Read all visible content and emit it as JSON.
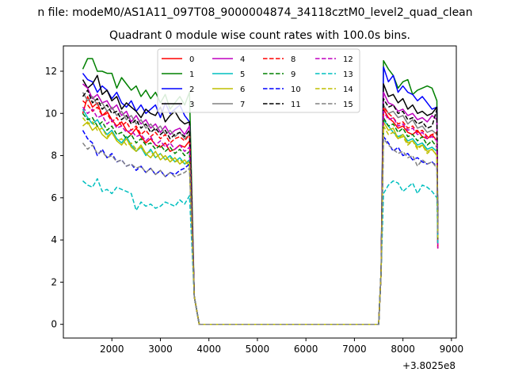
{
  "chart_data": {
    "type": "line",
    "suptitle": "n file: modeM0/AS1A11_097T08_9000004874_34118cztM0_level2_quad_clean",
    "title": "Quadrant 0 module wise count rates with 100.0s bins.",
    "xlabel": "",
    "ylabel": "",
    "x_offset_label": "+3.8025e8",
    "xlim": [
      1000,
      9100
    ],
    "ylim": [
      -0.65,
      13.2
    ],
    "x_ticks": [
      2000,
      3000,
      4000,
      5000,
      6000,
      7000,
      8000,
      9000
    ],
    "x_tick_labels": [
      "2000",
      "3000",
      "4000",
      "5000",
      "6000",
      "7000",
      "8000",
      "9000"
    ],
    "y_ticks": [
      0,
      2,
      4,
      6,
      8,
      10,
      12
    ],
    "y_tick_labels": [
      "0",
      "2",
      "4",
      "6",
      "8",
      "10",
      "12"
    ],
    "legend_position": "top-center",
    "legend_columns": 4,
    "series": [
      {
        "name": "0",
        "color": "#ff0000",
        "dash": "solid",
        "seg1": [
          10.0,
          10.8,
          10.3,
          10.5,
          9.9,
          10.1,
          9.7,
          9.4,
          9.6,
          9.2,
          9.0,
          9.3,
          8.9,
          8.6,
          8.8,
          8.5,
          8.4,
          8.6,
          8.2,
          8.3,
          8.5,
          8.4,
          8.7
        ],
        "seg2": [
          10.2,
          9.8,
          9.6,
          9.3,
          9.4,
          9.1,
          9.0,
          9.2,
          8.9,
          8.8,
          9.0,
          8.7
        ]
      },
      {
        "name": "1",
        "color": "#008000",
        "dash": "solid",
        "seg1": [
          12.1,
          12.6,
          12.6,
          12.0,
          12.0,
          11.9,
          11.9,
          11.2,
          11.7,
          11.4,
          11.1,
          11.3,
          10.8,
          11.1,
          10.7,
          11.0,
          10.5,
          10.9,
          10.2,
          10.5,
          10.8,
          10.4,
          11.0
        ],
        "seg2": [
          12.5,
          12.1,
          11.8,
          11.2,
          11.5,
          11.6,
          10.9,
          11.1,
          11.2,
          11.3,
          11.2,
          10.6
        ]
      },
      {
        "name": "2",
        "color": "#0000ff",
        "dash": "solid",
        "seg1": [
          11.9,
          11.6,
          11.5,
          11.0,
          11.3,
          11.1,
          10.7,
          11.0,
          10.5,
          10.3,
          10.6,
          10.1,
          10.4,
          10.0,
          10.2,
          10.4,
          9.8,
          10.5,
          10.0,
          10.2,
          10.4,
          9.9,
          9.6
        ],
        "seg2": [
          12.2,
          11.5,
          11.8,
          11.0,
          11.3,
          11.0,
          10.9,
          10.6,
          10.8,
          10.5,
          10.2,
          10.3
        ]
      },
      {
        "name": "3",
        "color": "#000000",
        "dash": "solid",
        "seg1": [
          11.6,
          11.2,
          11.4,
          11.8,
          10.9,
          11.1,
          10.6,
          10.8,
          10.2,
          10.5,
          10.3,
          10.1,
          9.8,
          10.2,
          10.0,
          9.9,
          10.3,
          9.6,
          9.9,
          10.1,
          9.7,
          9.5,
          9.6
        ],
        "seg2": [
          11.4,
          10.8,
          10.9,
          10.5,
          10.7,
          10.2,
          10.4,
          10.0,
          10.1,
          9.9,
          10.0,
          10.3
        ]
      },
      {
        "name": "4",
        "color": "#bf00bf",
        "dash": "solid",
        "seg1": [
          11.4,
          11.2,
          10.7,
          10.9,
          10.5,
          10.6,
          10.2,
          10.4,
          9.9,
          10.1,
          9.6,
          9.9,
          9.5,
          9.7,
          9.3,
          9.5,
          9.1,
          9.4,
          9.0,
          9.2,
          9.3,
          9.0,
          9.4
        ],
        "seg2": [
          11.0,
          10.5,
          10.4,
          10.1,
          10.2,
          9.9,
          10.0,
          9.7,
          9.8,
          9.6,
          9.9,
          9.7
        ]
      },
      {
        "name": "5",
        "color": "#00bfbf",
        "dash": "solid",
        "seg1": [
          10.2,
          9.8,
          9.5,
          9.7,
          9.3,
          9.0,
          9.2,
          8.8,
          8.6,
          8.9,
          8.5,
          8.2,
          8.4,
          8.0,
          8.3,
          7.9,
          8.1,
          7.8,
          8.0,
          7.7,
          7.9,
          7.6,
          7.8
        ],
        "seg2": [
          9.7,
          9.4,
          9.1,
          8.9,
          9.0,
          8.7,
          8.8,
          8.5,
          8.6,
          8.3,
          8.4,
          8.2
        ]
      },
      {
        "name": "6",
        "color": "#bfbf00",
        "dash": "solid",
        "seg1": [
          9.4,
          9.6,
          9.2,
          9.4,
          9.0,
          8.8,
          9.1,
          8.7,
          8.5,
          8.8,
          8.4,
          8.2,
          8.5,
          8.1,
          7.9,
          8.2,
          7.8,
          8.0,
          7.7,
          7.9,
          7.6,
          7.8,
          7.5
        ],
        "seg2": [
          9.6,
          9.2,
          9.3,
          8.8,
          9.0,
          8.6,
          8.7,
          8.4,
          8.5,
          8.2,
          8.3,
          8.0
        ]
      },
      {
        "name": "7",
        "color": "#808080",
        "dash": "solid",
        "seg1": [
          11.0,
          10.6,
          10.8,
          10.4,
          10.5,
          10.1,
          10.3,
          9.9,
          10.1,
          9.7,
          9.9,
          9.5,
          9.7,
          9.3,
          9.5,
          9.2,
          9.4,
          9.0,
          9.2,
          8.9,
          9.1,
          8.8,
          9.0
        ],
        "seg2": [
          10.4,
          10.0,
          10.1,
          9.8,
          9.9,
          9.5,
          9.7,
          9.3,
          9.4,
          9.1,
          9.2,
          9.0
        ]
      },
      {
        "name": "8",
        "color": "#ff0000",
        "dash": "dashed",
        "seg1": [
          10.6,
          10.4,
          10.1,
          10.3,
          9.9,
          10.0,
          9.6,
          9.8,
          9.4,
          9.6,
          9.2,
          9.4,
          9.0,
          9.2,
          8.9,
          9.1,
          8.8,
          9.0,
          8.6,
          8.8,
          8.9,
          8.7,
          9.0
        ],
        "seg2": [
          10.3,
          10.0,
          9.8,
          9.5,
          9.6,
          9.3,
          9.4,
          9.1,
          9.2,
          8.9,
          9.0,
          9.1
        ]
      },
      {
        "name": "9",
        "color": "#008000",
        "dash": "dashed",
        "seg1": [
          10.0,
          9.7,
          9.8,
          9.4,
          9.6,
          9.2,
          9.4,
          9.0,
          9.1,
          8.8,
          9.0,
          8.6,
          8.8,
          8.5,
          8.6,
          8.3,
          8.5,
          8.2,
          8.4,
          8.1,
          8.3,
          8.0,
          8.2
        ],
        "seg2": [
          9.8,
          9.4,
          9.5,
          9.1,
          9.3,
          8.9,
          9.0,
          8.7,
          8.9,
          8.5,
          8.7,
          8.4
        ]
      },
      {
        "name": "10",
        "color": "#0000ff",
        "dash": "dashed",
        "seg1": [
          9.2,
          8.8,
          8.6,
          8.0,
          8.3,
          7.9,
          8.1,
          7.7,
          7.8,
          7.5,
          7.6,
          7.3,
          7.5,
          7.2,
          7.4,
          7.1,
          7.3,
          7.0,
          7.2,
          7.1,
          7.3,
          7.4,
          7.6
        ],
        "seg2": [
          8.9,
          8.6,
          8.2,
          8.4,
          8.0,
          8.1,
          7.8,
          7.9,
          7.7,
          7.6,
          7.7,
          7.5
        ]
      },
      {
        "name": "11",
        "color": "#000000",
        "dash": "dashed",
        "seg1": [
          10.8,
          11.1,
          10.5,
          10.7,
          10.2,
          10.4,
          10.0,
          10.1,
          9.7,
          9.9,
          9.5,
          9.7,
          9.3,
          9.5,
          9.1,
          9.3,
          9.0,
          9.2,
          8.8,
          9.0,
          9.1,
          8.9,
          9.2
        ],
        "seg2": [
          10.7,
          10.3,
          10.4,
          10.0,
          10.1,
          9.7,
          9.8,
          9.5,
          9.6,
          9.3,
          9.4,
          10.2
        ]
      },
      {
        "name": "12",
        "color": "#bf00bf",
        "dash": "dashed",
        "seg1": [
          10.3,
          10.0,
          10.2,
          9.8,
          9.9,
          9.5,
          9.7,
          9.3,
          9.4,
          9.1,
          9.2,
          8.9,
          9.0,
          8.7,
          8.9,
          8.5,
          8.7,
          8.4,
          8.6,
          8.3,
          8.5,
          8.2,
          8.4
        ],
        "seg2": [
          10.1,
          9.7,
          9.8,
          9.4,
          9.5,
          9.2,
          9.3,
          9.0,
          9.1,
          8.8,
          8.9,
          8.7
        ]
      },
      {
        "name": "13",
        "color": "#00bfbf",
        "dash": "dashed",
        "seg1": [
          6.8,
          6.6,
          6.5,
          6.9,
          6.3,
          6.4,
          6.2,
          6.5,
          6.4,
          6.3,
          6.2,
          5.4,
          5.8,
          5.6,
          5.7,
          5.5,
          5.6,
          5.8,
          5.7,
          5.6,
          5.9,
          5.7,
          6.1
        ],
        "seg2": [
          6.2,
          6.6,
          6.8,
          6.7,
          6.3,
          6.5,
          6.7,
          6.2,
          6.6,
          6.5,
          6.3,
          6.0
        ]
      },
      {
        "name": "14",
        "color": "#bfbf00",
        "dash": "dashed",
        "seg1": [
          9.8,
          9.5,
          9.6,
          9.2,
          9.3,
          8.9,
          9.1,
          8.7,
          8.8,
          8.5,
          8.6,
          8.3,
          8.4,
          8.1,
          8.2,
          7.9,
          8.1,
          7.8,
          7.9,
          7.7,
          7.8,
          7.6,
          7.7
        ],
        "seg2": [
          9.4,
          9.0,
          9.1,
          8.8,
          8.9,
          8.5,
          8.7,
          8.3,
          8.5,
          8.1,
          8.3,
          8.0
        ]
      },
      {
        "name": "15",
        "color": "#808080",
        "dash": "dashed",
        "seg1": [
          8.6,
          8.3,
          8.5,
          8.1,
          8.2,
          7.9,
          8.0,
          7.7,
          7.8,
          7.5,
          7.6,
          7.4,
          7.5,
          7.2,
          7.4,
          7.1,
          7.3,
          7.0,
          7.2,
          7.0,
          7.1,
          7.2,
          7.4
        ],
        "seg2": [
          8.8,
          8.5,
          8.3,
          8.1,
          8.2,
          7.9,
          8.0,
          7.5,
          7.8,
          7.6,
          7.7,
          7.4
        ]
      }
    ]
  }
}
